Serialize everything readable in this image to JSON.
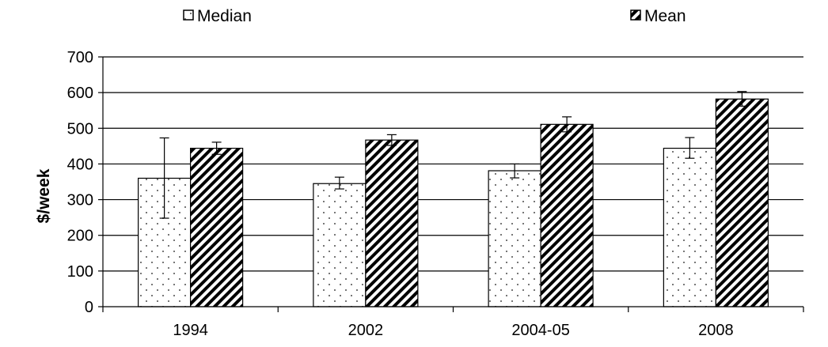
{
  "chart_data": {
    "type": "bar",
    "title": "",
    "xlabel": "",
    "ylabel": "$/week",
    "ylim": [
      0,
      700
    ],
    "yticks": [
      0,
      100,
      200,
      300,
      400,
      500,
      600,
      700
    ],
    "grid": true,
    "legend_position": "top",
    "categories": [
      "1994",
      "2002",
      "2004-05",
      "2008"
    ],
    "series": [
      {
        "name": "Median",
        "pattern": "dots",
        "values": [
          360,
          345,
          381,
          444
        ],
        "error_low": [
          248,
          330,
          361,
          416
        ],
        "error_high": [
          473,
          363,
          400,
          474
        ]
      },
      {
        "name": "Mean",
        "pattern": "diagonal-hatch",
        "values": [
          444,
          467,
          511,
          582
        ],
        "error_low": [
          427,
          452,
          490,
          562
        ],
        "error_high": [
          461,
          482,
          532,
          603
        ]
      }
    ]
  }
}
